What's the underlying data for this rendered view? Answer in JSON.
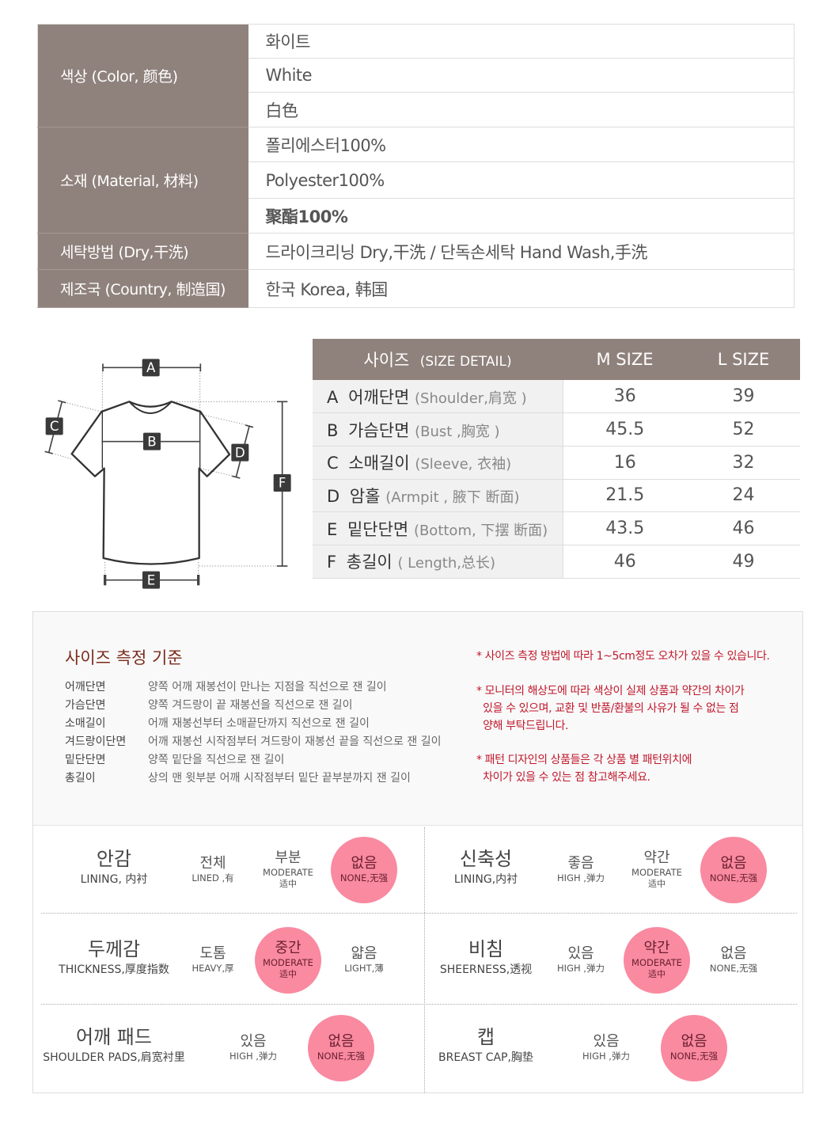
{
  "info": [
    {
      "label": "색상 (Color, 颜色)",
      "values": [
        "화이트",
        "White",
        "白色"
      ]
    },
    {
      "label": "소재 (Material, 材料)",
      "values": [
        "폴리에스터100%",
        "Polyester100%",
        "聚酯100%"
      ]
    },
    {
      "label": "세탁방법 (Dry,干洗)",
      "values": [
        "드라이크리닝 Dry,干洗 / 단독손세탁 Hand Wash,手洗"
      ]
    },
    {
      "label": "제조국 (Country, 制造国)",
      "values": [
        "한국 Korea, 韩国"
      ]
    }
  ],
  "diagram": {
    "labels": [
      "A",
      "B",
      "C",
      "D",
      "E",
      "F"
    ]
  },
  "size_table": {
    "header": {
      "title": "사이즈",
      "subtitle": "(SIZE DETAIL)",
      "cols": [
        "M SIZE",
        "L SIZE"
      ]
    },
    "rows": [
      {
        "letter": "A",
        "ko": "어깨단면",
        "en": "(Shoulder,肩宽 )",
        "m": "36",
        "l": "39"
      },
      {
        "letter": "B",
        "ko": "가슴단면",
        "en": "(Bust ,胸宽 )",
        "m": "45.5",
        "l": "52"
      },
      {
        "letter": "C",
        "ko": "소매길이",
        "en": "(Sleeve, 衣袖)",
        "m": "16",
        "l": "32"
      },
      {
        "letter": "D",
        "ko": "암홀",
        "en": "(Armpit , 腋下 断面)",
        "m": "21.5",
        "l": "24"
      },
      {
        "letter": "E",
        "ko": "밑단단면",
        "en": "(Bottom, 下摆 断面)",
        "m": "43.5",
        "l": "46"
      },
      {
        "letter": "F",
        "ko": "총길이",
        "en": "( Length,总长)",
        "m": "46",
        "l": "49"
      }
    ]
  },
  "measure": {
    "title": "사이즈 측정 기준",
    "items": [
      {
        "k": "어깨단면",
        "d": "양쪽 어깨 재봉선이 만나는 지점을 직선으로 잰 길이"
      },
      {
        "k": "가슴단면",
        "d": "양쪽 겨드랑이 끝 재봉선을 직선으로 잰 길이"
      },
      {
        "k": "소매길이",
        "d": "어깨 재봉선부터 소매끝단까지 직선으로 잰 길이"
      },
      {
        "k": "겨드랑이단면",
        "d": "어깨 재봉선 시작점부터 겨드랑이 재봉선 끝을 직선으로 잰 길이"
      },
      {
        "k": "밑단단면",
        "d": "양쪽 밑단을 직선으로 잰 길이"
      },
      {
        "k": "총길이",
        "d": "상의 맨 윗부분 어깨 시작점부터 밑단 끝부분까지 잰 길이"
      }
    ],
    "notes": [
      [
        "* 사이즈 측정 방법에 따라 1~5cm정도 오차가 있을 수 있습니다."
      ],
      [
        "* 모니터의 해상도에 따라 색상이 실제 상품과 약간의 차이가",
        "  있을 수 있으며, 교환 및 반품/환불의 사유가 될 수 없는 점",
        "  양해 부탁드립니다."
      ],
      [
        "* 패턴 디자인의 상품들은 각 상품 별 패턴위치에",
        "  차이가 있을 수 있는 점 참고해주세요."
      ]
    ]
  },
  "attributes": [
    {
      "k": "안감",
      "e": "LINING, 内衬",
      "options": [
        {
          "k": "전체",
          "e": "LINED ,有"
        },
        {
          "k": "부분",
          "e": "MODERATE",
          "z": "适中"
        },
        {
          "k": "없음",
          "e": "NONE,无强",
          "selected": true
        }
      ]
    },
    {
      "k": "신축성",
      "e": "LINING,内衬",
      "options": [
        {
          "k": "좋음",
          "e": "HIGH ,弹力"
        },
        {
          "k": "약간",
          "e": "MODERATE",
          "z": "适中"
        },
        {
          "k": "없음",
          "e": "NONE,无强",
          "selected": true
        }
      ]
    },
    {
      "k": "두께감",
      "e": "THICKNESS,厚度指数",
      "options": [
        {
          "k": "도톰",
          "e": "HEAVY,厚"
        },
        {
          "k": "중간",
          "e": "MODERATE",
          "z": "适中",
          "selected": true
        },
        {
          "k": "얇음",
          "e": "LIGHT,薄"
        }
      ]
    },
    {
      "k": "비침",
      "e": "SHEERNESS,透视",
      "options": [
        {
          "k": "있음",
          "e": "HIGH ,弹力"
        },
        {
          "k": "약간",
          "e": "MODERATE",
          "z": "适中",
          "selected": true
        },
        {
          "k": "없음",
          "e": "NONE,无强"
        }
      ]
    },
    {
      "k": "어깨 패드",
      "e": "SHOULDER PADS,肩宽衬里",
      "options": [
        {
          "k": "있음",
          "e": "HIGH ,弹力"
        },
        {
          "k": "없음",
          "e": "NONE,无强",
          "selected": true
        }
      ]
    },
    {
      "k": "캡",
      "e": "BREAST CAP,胸垫",
      "options": [
        {
          "k": "있음",
          "e": "HIGH ,弹力"
        },
        {
          "k": "없음",
          "e": "NONE,无强",
          "selected": true
        }
      ]
    }
  ],
  "colors": {
    "header": "#8f827c",
    "selected": "#f98aa0",
    "title": "#7a2b1c",
    "note": "#c0182b"
  }
}
